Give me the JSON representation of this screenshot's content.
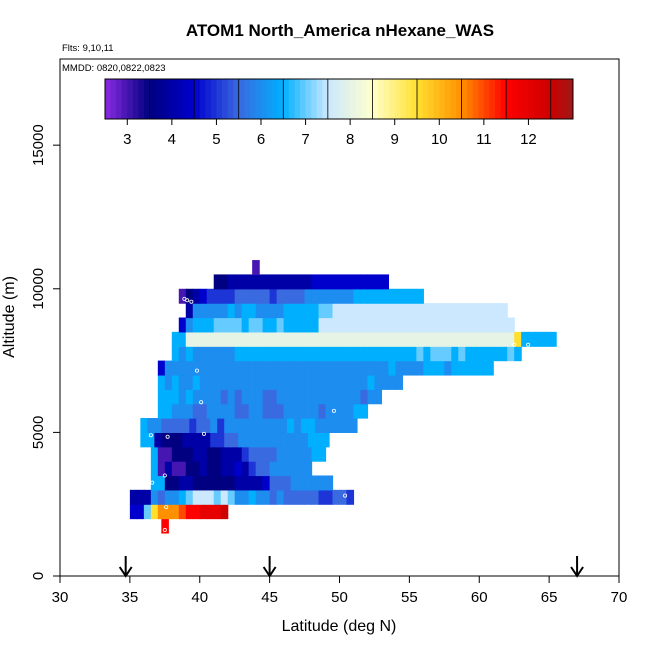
{
  "chart_data": {
    "type": "heatmap",
    "title": "ATOM1 North_America nHexane_WAS",
    "notes": [
      "Flts: 9,10,11",
      "MMDD: 0820,0822,0823"
    ],
    "xlabel": "Latitude (deg N)",
    "ylabel": "Altitude (m)",
    "xlim": [
      30,
      70
    ],
    "ylim": [
      0,
      18000
    ],
    "xticks": [
      "30",
      "35",
      "40",
      "45",
      "50",
      "55",
      "60",
      "65",
      "70"
    ],
    "yticks": [
      "0",
      "5000",
      "10000",
      "15000"
    ],
    "colorbar": {
      "ticks": [
        "3",
        "4",
        "5",
        "6",
        "7",
        "8",
        "9",
        "10",
        "11",
        "12"
      ],
      "range": [
        2.5,
        13
      ],
      "stops": [
        {
          "v": 2.5,
          "c": "#8a2be2"
        },
        {
          "v": 3.5,
          "c": "#000080"
        },
        {
          "v": 4.5,
          "c": "#0000cd"
        },
        {
          "v": 5.5,
          "c": "#3a6ae0"
        },
        {
          "v": 6.5,
          "c": "#00b0ff"
        },
        {
          "v": 7.5,
          "c": "#cce8ff"
        },
        {
          "v": 8.5,
          "c": "#ffffcc"
        },
        {
          "v": 9.5,
          "c": "#ffe030"
        },
        {
          "v": 10.5,
          "c": "#ff9000"
        },
        {
          "v": 11.5,
          "c": "#ff0000"
        },
        {
          "v": 12.5,
          "c": "#cc0000"
        },
        {
          "v": 13,
          "c": "#a01818"
        }
      ]
    },
    "flight_markers_lat": [
      34.7,
      45,
      67
    ],
    "cell_size": {
      "dlat": 0.5,
      "dalt": 500
    },
    "rows": [
      {
        "alt": 1750,
        "lat0": 37.25,
        "v": [
          11.5
        ]
      },
      {
        "alt": 2250,
        "lat0": 35.0,
        "v": [
          4.5,
          4.5,
          7,
          9.5,
          10.5,
          10.5,
          10.5,
          11,
          11.5,
          11.5,
          12,
          12,
          12,
          12.5
        ]
      },
      {
        "alt": 2750,
        "lat0": 35.0,
        "v": [
          4,
          4,
          4,
          6,
          5.5,
          6,
          6,
          6.5,
          7,
          7.5,
          7.5,
          7.5,
          7,
          7.5,
          7,
          6,
          6,
          6.5,
          6,
          6,
          5.5,
          6,
          5.5,
          5.5,
          5.5,
          5.5,
          5.5,
          5,
          5,
          5.5,
          5.5,
          5
        ]
      },
      {
        "alt": 3250,
        "lat0": 36.5,
        "v": [
          6.5,
          6.5,
          3.5,
          3.5,
          4,
          4,
          3.5,
          3.5,
          3.5,
          3.5,
          3.5,
          3.5,
          4,
          4,
          4,
          4,
          4.5,
          5.5,
          5.5,
          5.5,
          6,
          6,
          6,
          6,
          6,
          6
        ]
      },
      {
        "alt": 3750,
        "lat0": 36.5,
        "v": [
          6.5,
          3,
          4,
          3,
          3,
          3.5,
          3.5,
          4,
          3.5,
          3.5,
          4,
          4,
          4.5,
          4,
          5,
          5.5,
          5.5,
          6,
          6,
          6,
          6,
          6,
          6
        ]
      },
      {
        "alt": 4250,
        "lat0": 36.5,
        "v": [
          6.5,
          3,
          3,
          3.5,
          3.5,
          3.5,
          4,
          4,
          3.5,
          3.5,
          4,
          4,
          4,
          5,
          5.5,
          5.5,
          5.5,
          5.5,
          6,
          6,
          6,
          6,
          6,
          6.5,
          6.5
        ]
      },
      {
        "alt": 4750,
        "lat0": 35.75,
        "v": [
          6.5,
          6.5,
          4,
          3.5,
          3.5,
          3.5,
          4,
          4,
          4,
          4,
          5,
          5,
          5.5,
          5.5,
          6,
          6,
          6,
          6,
          6,
          6,
          6,
          6,
          6,
          6,
          6.5,
          6.5,
          6.5
        ]
      },
      {
        "alt": 5250,
        "lat0": 35.75,
        "v": [
          6.5,
          6,
          6,
          5.5,
          5.5,
          5.5,
          5.5,
          5,
          5.5,
          5.5,
          6,
          5,
          6,
          6,
          6,
          6,
          6,
          6,
          6,
          6,
          6,
          6.5,
          6,
          6.5,
          6.5,
          6,
          6,
          6,
          6,
          6,
          6
        ]
      },
      {
        "alt": 5750,
        "lat0": 37.0,
        "v": [
          6.5,
          6.5,
          6,
          6,
          6,
          5.5,
          5.5,
          6,
          6,
          6,
          6,
          5.5,
          5.5,
          6,
          6,
          5.5,
          5.5,
          5.5,
          6,
          6,
          6,
          6,
          6,
          5.5,
          6,
          6,
          6,
          6,
          6.5,
          6.5
        ]
      },
      {
        "alt": 6250,
        "lat0": 37.0,
        "v": [
          6.5,
          6.5,
          6.5,
          6,
          6.5,
          6,
          6,
          6,
          6,
          5.5,
          6,
          5.5,
          6,
          6,
          6,
          5.5,
          5.5,
          6,
          6,
          6,
          6,
          6,
          6,
          6,
          6,
          6,
          6,
          6,
          6,
          5.5,
          6,
          6
        ]
      },
      {
        "alt": 6750,
        "lat0": 37.0,
        "v": [
          6.5,
          6,
          6.5,
          6,
          6,
          6.5,
          6,
          6,
          6,
          6,
          6,
          6,
          6,
          6,
          6,
          6,
          6,
          6,
          6,
          6,
          6,
          6,
          6,
          6,
          6,
          6,
          6,
          6,
          6,
          6,
          6.5,
          6,
          6,
          6,
          6
        ]
      },
      {
        "alt": 7250,
        "lat0": 37.0,
        "v": [
          4.5,
          6,
          6,
          6,
          6,
          6,
          6,
          6,
          6,
          6,
          6,
          6,
          6,
          6,
          6,
          6,
          6,
          6,
          6,
          6,
          6,
          6,
          6,
          6,
          6,
          6,
          6,
          6,
          6,
          6,
          6,
          6,
          6,
          6.5,
          6,
          6,
          6,
          6,
          6.5,
          6.5,
          6.5,
          6,
          6.5,
          6.5,
          6.5,
          6.5,
          6.5,
          6.5
        ]
      },
      {
        "alt": 7750,
        "lat0": 38.0,
        "v": [
          6.5,
          6,
          6.5,
          6,
          6,
          6,
          6,
          6,
          6,
          6.5,
          6.5,
          6.5,
          6.5,
          6.5,
          6.5,
          6.5,
          6.5,
          6.5,
          6.5,
          6.5,
          6.5,
          6.5,
          6.5,
          6.5,
          6.5,
          6.5,
          6.5,
          6.5,
          6.5,
          6.5,
          6.5,
          6.5,
          6.5,
          6.5,
          6.5,
          7,
          6.5,
          7,
          7,
          7,
          6.5,
          7,
          6.5,
          6.5,
          6.5,
          6.5,
          6.5,
          6.5,
          7,
          6.5
        ]
      },
      {
        "alt": 8250,
        "lat0": 38.0,
        "v": [
          6.5,
          6.5,
          8,
          8,
          8,
          8,
          8,
          8,
          8,
          8,
          8,
          8,
          8,
          8,
          8,
          8,
          8,
          8,
          8,
          8,
          8,
          8,
          8,
          8,
          8,
          8,
          8,
          8,
          8,
          8,
          8,
          8,
          8,
          8,
          8,
          8,
          8,
          8,
          8,
          8,
          8,
          8,
          8,
          8,
          8,
          8,
          8,
          8,
          8,
          9.5,
          6.5,
          6.5,
          6.5,
          6.5,
          6.5
        ]
      },
      {
        "alt": 8750,
        "lat0": 38.5,
        "v": [
          4.5,
          6,
          6.5,
          6.5,
          6.5,
          7,
          7,
          7,
          7,
          6.5,
          7,
          7,
          6.5,
          6.5,
          7,
          6.5,
          6.5,
          6.5,
          6.5,
          6.5,
          7.5,
          7.5,
          7.5,
          7.5,
          7.5,
          7.5,
          7.5,
          7.5,
          7.5,
          7.5,
          7.5,
          7.5,
          7.5,
          7.5,
          7.5,
          7.5,
          7.5,
          7.5,
          7.5,
          7.5,
          7.5,
          7.5,
          7.5,
          7.5,
          7.5,
          7.5,
          7.5,
          7.5
        ]
      },
      {
        "alt": 9250,
        "lat0": 39.0,
        "v": [
          4,
          6,
          6,
          6,
          6,
          6,
          6.5,
          6,
          6.5,
          6.5,
          6,
          6,
          6,
          6,
          6.5,
          6.5,
          6.5,
          6.5,
          6.5,
          7,
          7,
          7.5,
          7.5,
          7.5,
          7.5,
          7.5,
          7.5,
          7.5,
          7.5,
          7.5,
          7.5,
          7.5,
          7.5,
          7.5,
          7.5,
          7.5,
          7.5,
          7.5,
          7.5,
          7.5,
          7.5,
          7.5,
          7.5,
          7.5,
          7.5,
          7.5
        ]
      },
      {
        "alt": 9750,
        "lat0": 38.5,
        "v": [
          3,
          3.5,
          4,
          4.5,
          5,
          5,
          5,
          5,
          5.5,
          5.5,
          5.5,
          5.5,
          5.5,
          5,
          5.5,
          5.5,
          5.5,
          5.5,
          6,
          6,
          6,
          6,
          6,
          6,
          6,
          6.5,
          6.5,
          6.5,
          6.5,
          6.5,
          6.5,
          6.5,
          6.5,
          6.5,
          6.5
        ]
      },
      {
        "alt": 10250,
        "lat0": 41.0,
        "v": [
          3.5,
          3.5,
          4,
          4,
          4,
          4,
          4,
          4,
          4,
          4,
          4,
          4,
          4,
          4,
          4.5,
          4.5,
          4.5,
          4.5,
          4.5,
          4.5,
          4.5,
          4.5,
          4.5,
          4.5,
          4.5
        ]
      },
      {
        "alt": 10750,
        "lat0": 43.75,
        "v": [
          3
        ]
      }
    ],
    "points": [
      {
        "lat": 34.8,
        "alt": 2300
      },
      {
        "lat": 34.8,
        "alt": 2750
      },
      {
        "lat": 37.6,
        "alt": 2400
      },
      {
        "lat": 36.6,
        "alt": 3250
      },
      {
        "lat": 37.5,
        "alt": 3500
      },
      {
        "lat": 36.5,
        "alt": 4900
      },
      {
        "lat": 37.7,
        "alt": 4850
      },
      {
        "lat": 40.3,
        "alt": 4950
      },
      {
        "lat": 40.1,
        "alt": 6050
      },
      {
        "lat": 39.8,
        "alt": 7150
      },
      {
        "lat": 49.6,
        "alt": 5750
      },
      {
        "lat": 50.5,
        "alt": 3650
      },
      {
        "lat": 50.4,
        "alt": 2800
      },
      {
        "lat": 37.5,
        "alt": 1600
      },
      {
        "lat": 38.9,
        "alt": 9650
      },
      {
        "lat": 39.1,
        "alt": 9600
      },
      {
        "lat": 39.4,
        "alt": 9550
      },
      {
        "lat": 43.25,
        "alt": 10600
      },
      {
        "lat": 62.5,
        "alt": 8050
      },
      {
        "lat": 63.5,
        "alt": 8050
      }
    ]
  }
}
